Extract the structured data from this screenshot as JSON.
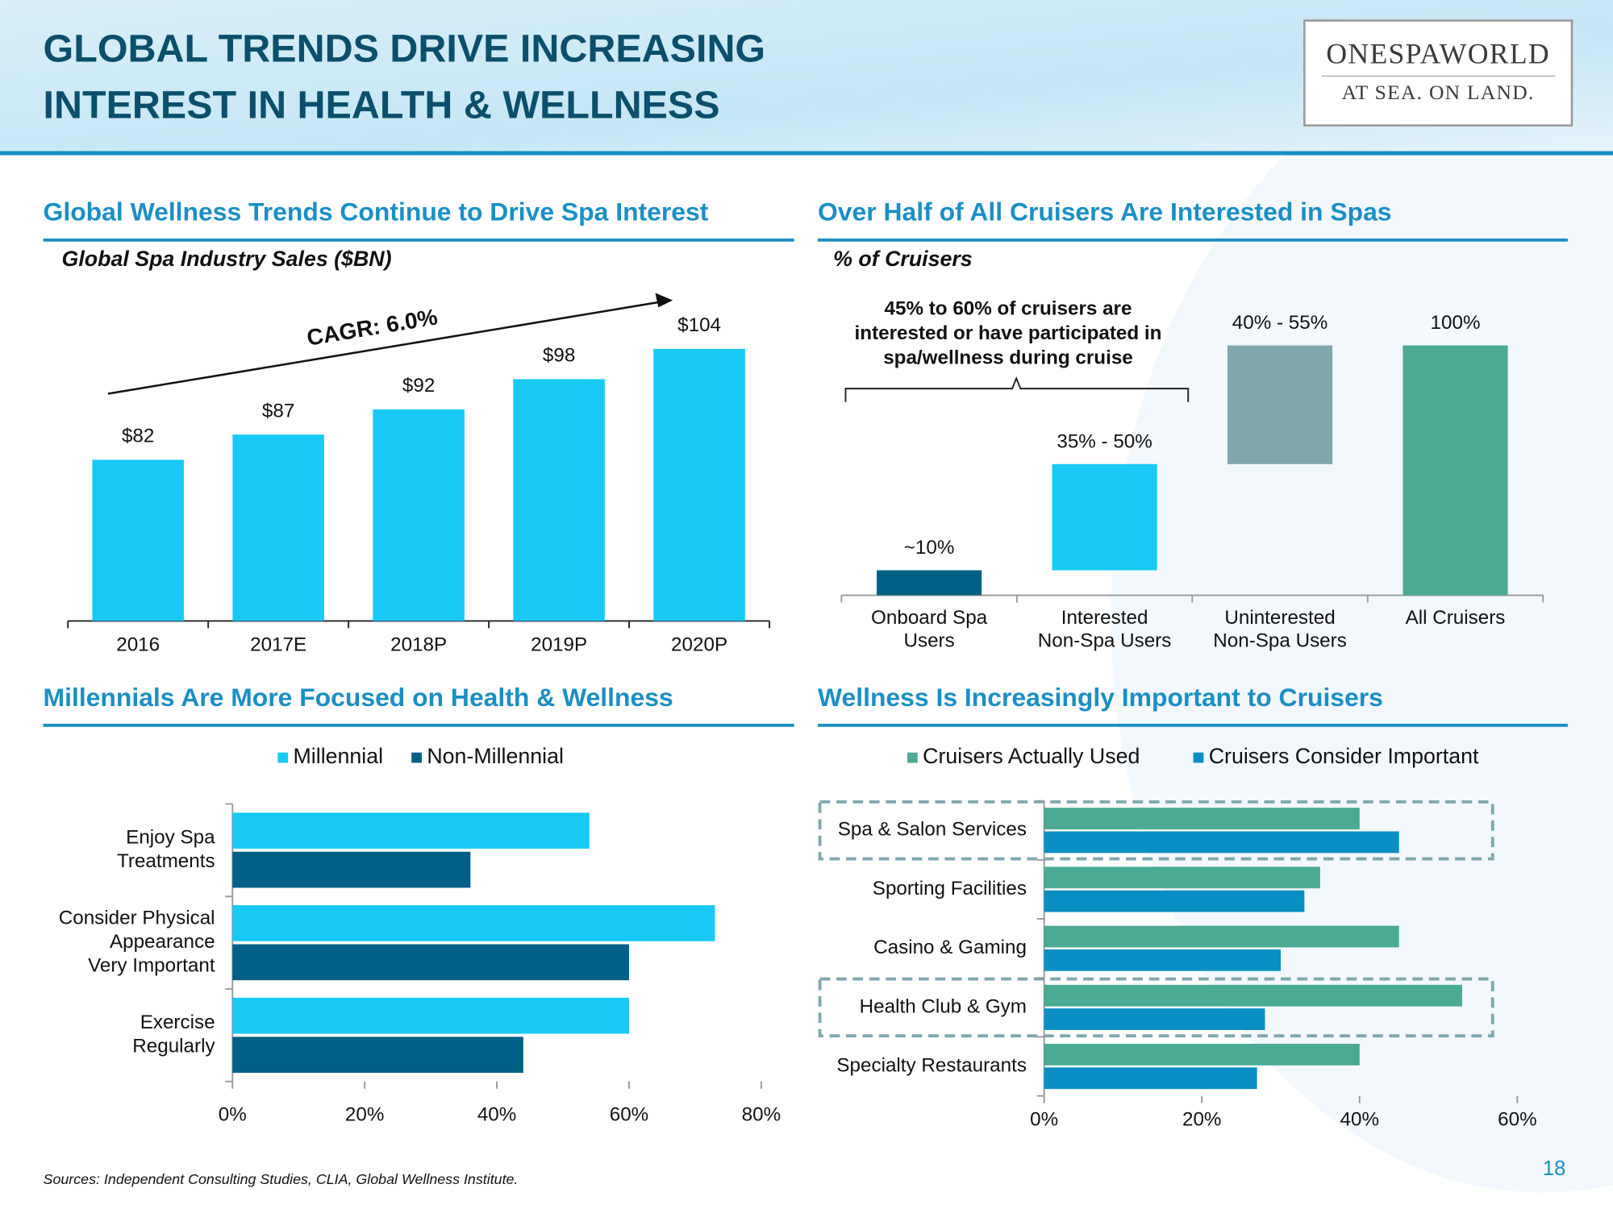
{
  "header": {
    "title": [
      "GLOBAL TRENDS DRIVE INCREASING",
      "INTEREST IN HEALTH & WELLNESS"
    ]
  },
  "logo": {
    "name": "ONESPAWORLD",
    "tagline": "AT SEA. ON LAND."
  },
  "chart_data": [
    {
      "type": "bar",
      "title": "Global Wellness Trends Continue to Drive Spa Interest",
      "subtitle": "Global Spa Industry Sales ($BN)",
      "annotation": "CAGR: 6.0%",
      "categories": [
        "2016",
        "2017E",
        "2018P",
        "2019P",
        "2020P"
      ],
      "values": [
        82,
        87,
        92,
        98,
        104
      ],
      "value_labels": [
        "$82",
        "$87",
        "$92",
        "$98",
        "$104"
      ],
      "color": "#18c9f5",
      "ylim": [
        50,
        110
      ]
    },
    {
      "type": "waterfall",
      "title": "Over Half of All Cruisers Are Interested in Spas",
      "subtitle": "% of Cruisers",
      "annotation": [
        "45% to 60% of cruisers are",
        "interested or have participated in",
        "spa/wellness during cruise"
      ],
      "categories": [
        [
          "Onboard Spa",
          "Users"
        ],
        [
          "Interested",
          "Non-Spa Users"
        ],
        [
          "Uninterested",
          "Non-Spa Users"
        ],
        "All Cruisers"
      ],
      "values": [
        10,
        42.5,
        47.5,
        100
      ],
      "value_labels": [
        "~10%",
        "35% - 50%",
        "40% - 55%",
        "100%"
      ],
      "is_total": [
        false,
        false,
        false,
        true
      ],
      "colors": [
        "#005f85",
        "#18c9f5",
        "#7ea8ad",
        "#4aaa94"
      ],
      "ylim": [
        0,
        100
      ]
    },
    {
      "type": "hbar",
      "title": "Millennials Are More Focused on Health & Wellness",
      "categories": [
        [
          "Enjoy Spa",
          "Treatments"
        ],
        [
          "Consider Physical",
          "Appearance",
          "Very Important"
        ],
        [
          "Exercise",
          "Regularly"
        ]
      ],
      "series": [
        {
          "name": "Millennial",
          "color": "#18c9f5",
          "values": [
            54,
            73,
            60
          ]
        },
        {
          "name": "Non-Millennial",
          "color": "#005f85",
          "values": [
            36,
            60,
            44
          ]
        }
      ],
      "xlim": [
        0,
        80
      ],
      "xticks": [
        {
          "value": 0,
          "label": "0%"
        },
        {
          "value": 20,
          "label": "20%"
        },
        {
          "value": 40,
          "label": "40%"
        },
        {
          "value": 60,
          "label": "60%"
        },
        {
          "value": 80,
          "label": "80%"
        }
      ]
    },
    {
      "type": "hbar",
      "title": "Wellness Is Increasingly Important to Cruisers",
      "categories": [
        "Spa & Salon Services",
        "Sporting Facilities",
        "Casino & Gaming",
        "Health Club & Gym",
        "Specialty Restaurants"
      ],
      "series": [
        {
          "name": "Cruisers Actually Used",
          "color": "#4aaa94",
          "values": [
            40,
            35,
            45,
            53,
            40
          ]
        },
        {
          "name": "Cruisers Consider Important",
          "color": "#0a8fc4",
          "values": [
            45,
            33,
            30,
            28,
            27
          ]
        }
      ],
      "highlight": [
        true,
        false,
        false,
        true,
        false
      ],
      "xlim": [
        0,
        60
      ],
      "xticks": [
        {
          "value": 0,
          "label": "0%"
        },
        {
          "value": 20,
          "label": "20%"
        },
        {
          "value": 40,
          "label": "40%"
        },
        {
          "value": 60,
          "label": "60%"
        }
      ]
    }
  ],
  "sources": "Sources: Independent Consulting Studies, CLIA, Global Wellness Institute.",
  "page_number": "18"
}
